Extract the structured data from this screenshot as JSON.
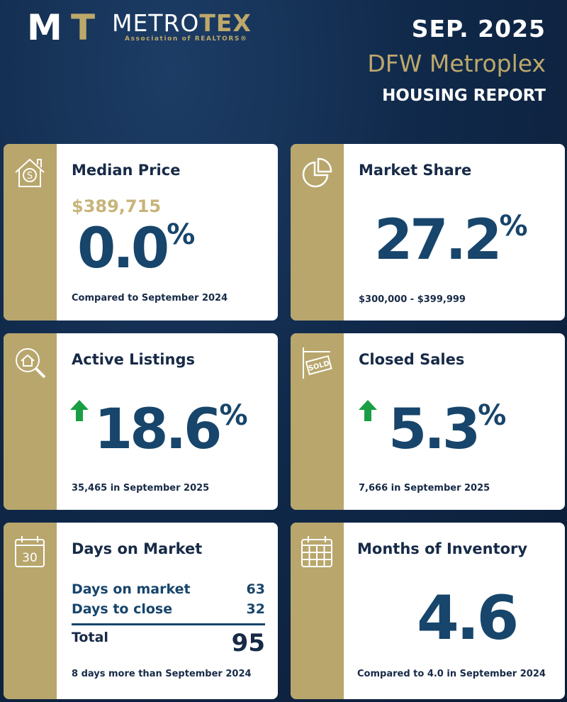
{
  "header": {
    "logo_text_light": "METRO",
    "logo_text_gold": "TEX",
    "logo_sub": "Association of REALTORS®",
    "logo_mark": "MT",
    "date": "SEP. 2025",
    "region": "DFW Metroplex",
    "report": "HOUSING REPORT"
  },
  "colors": {
    "gold": "#b8a66c",
    "navy": "#17456b",
    "background": "#10294a"
  },
  "cards": {
    "median": {
      "title": "Median Price",
      "price": "$389,715",
      "value": "0.0",
      "unit": "%",
      "note": "Compared to September 2024",
      "icon": "house-dollar-icon"
    },
    "share": {
      "title": "Market Share",
      "value": "27.2",
      "unit": "%",
      "note": "$300,000 - $399,999",
      "icon": "pie-chart-icon"
    },
    "active": {
      "title": "Active Listings",
      "value": "18.6",
      "unit": "%",
      "note": "35,465 in September 2025",
      "icon": "house-search-icon",
      "trend": "up"
    },
    "closed": {
      "title": "Closed Sales",
      "value": "5.3",
      "unit": "%",
      "note": "7,666 in September 2025",
      "icon": "sold-sign-icon",
      "trend": "up"
    },
    "dom": {
      "title": "Days on Market",
      "calendar_day": "30",
      "rows": [
        {
          "label": "Days on market",
          "value": "63"
        },
        {
          "label": "Days to close",
          "value": "32"
        }
      ],
      "total_label": "Total",
      "total_value": "95",
      "note": "8 days more than September 2024"
    },
    "inventory": {
      "title": "Months of Inventory",
      "value": "4.6",
      "note": "Compared to 4.0 in September 2024",
      "icon": "calendar-grid-icon"
    }
  }
}
